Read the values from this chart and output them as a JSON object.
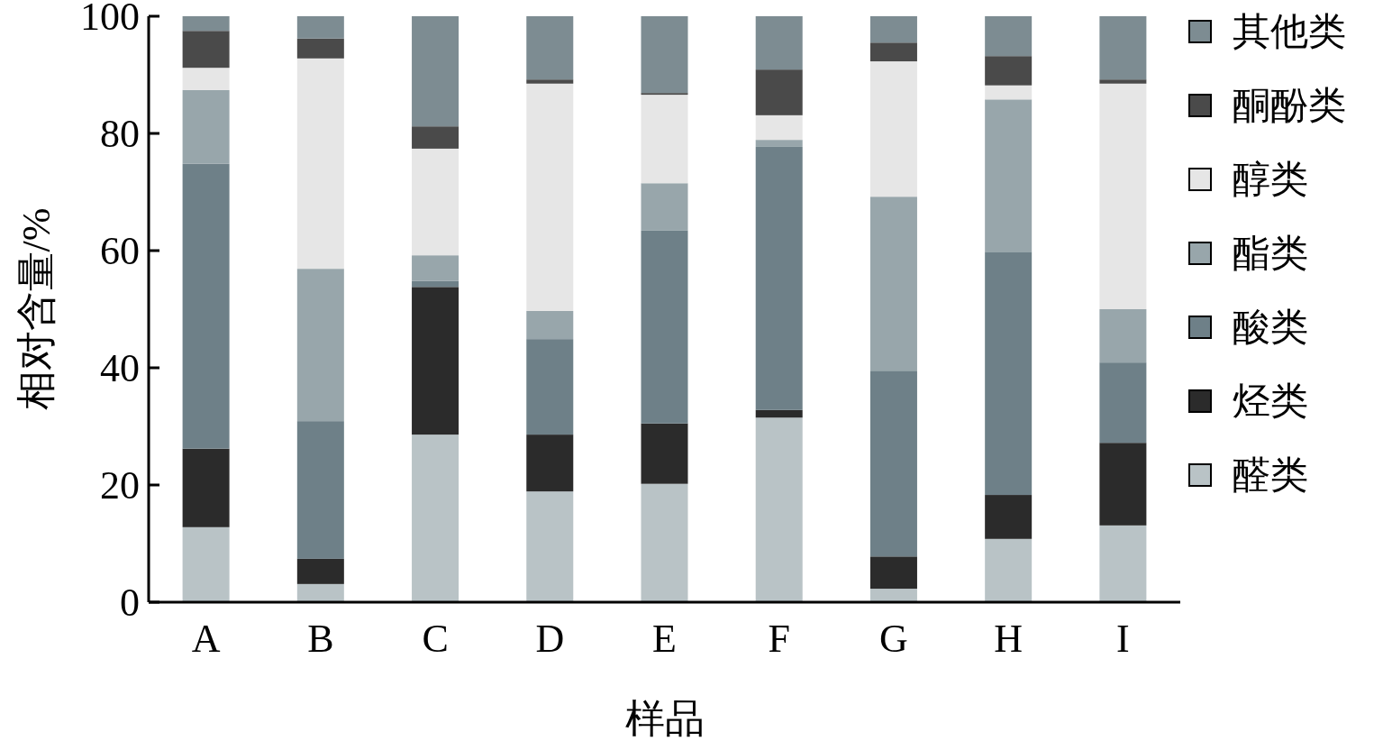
{
  "chart_data": {
    "type": "bar",
    "stacked": true,
    "xlabel": "样品",
    "ylabel": "相对含量/%",
    "categories": [
      "A",
      "B",
      "C",
      "D",
      "E",
      "F",
      "G",
      "H",
      "I"
    ],
    "ylim": [
      0,
      100
    ],
    "yticks": [
      0,
      20,
      40,
      60,
      80,
      100
    ],
    "legend": "top right",
    "grid": false,
    "series": [
      {
        "name": "醛类",
        "color": "#b9c3c6",
        "values": [
          12.8,
          3.1,
          28.6,
          18.9,
          20.2,
          31.5,
          2.3,
          10.8,
          13.1
        ]
      },
      {
        "name": "烃类",
        "color": "#2b2b2b",
        "values": [
          13.4,
          4.3,
          25.2,
          9.7,
          10.3,
          1.3,
          5.5,
          7.5,
          14.1
        ]
      },
      {
        "name": "酸类",
        "color": "#6e8088",
        "values": [
          48.6,
          23.5,
          1.0,
          16.3,
          32.9,
          44.9,
          31.7,
          41.5,
          13.7
        ]
      },
      {
        "name": "酯类",
        "color": "#98a6ab",
        "values": [
          12.6,
          26.0,
          4.4,
          4.8,
          8.1,
          1.2,
          29.7,
          26.0,
          9.1
        ]
      },
      {
        "name": "醇类",
        "color": "#e6e6e6",
        "values": [
          3.8,
          35.9,
          18.2,
          38.8,
          15.1,
          4.2,
          23.1,
          2.4,
          38.5
        ]
      },
      {
        "name": "酮酚类",
        "color": "#4a4a4a",
        "values": [
          6.3,
          3.4,
          3.8,
          0.7,
          0.3,
          7.8,
          3.2,
          5.0,
          0.7
        ]
      },
      {
        "name": "其他类",
        "color": "#7d8c92",
        "values": [
          2.5,
          3.8,
          18.8,
          10.8,
          13.1,
          9.1,
          4.5,
          6.8,
          10.8
        ]
      }
    ]
  }
}
